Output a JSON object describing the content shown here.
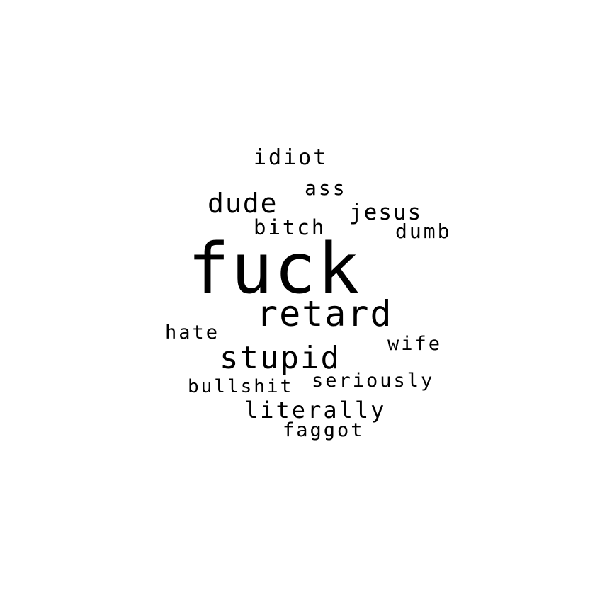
{
  "word_cloud": {
    "background_color": "#ffffff",
    "text_color": "#000000",
    "words": [
      {
        "text": "fuck"
      },
      {
        "text": "retard"
      },
      {
        "text": "stupid"
      },
      {
        "text": "dude"
      },
      {
        "text": "idiot"
      },
      {
        "text": "ass"
      },
      {
        "text": "jesus"
      },
      {
        "text": "bitch"
      },
      {
        "text": "dumb"
      },
      {
        "text": "hate"
      },
      {
        "text": "wife"
      },
      {
        "text": "bullshit"
      },
      {
        "text": "seriously"
      },
      {
        "text": "literally"
      },
      {
        "text": "faggot"
      }
    ]
  }
}
